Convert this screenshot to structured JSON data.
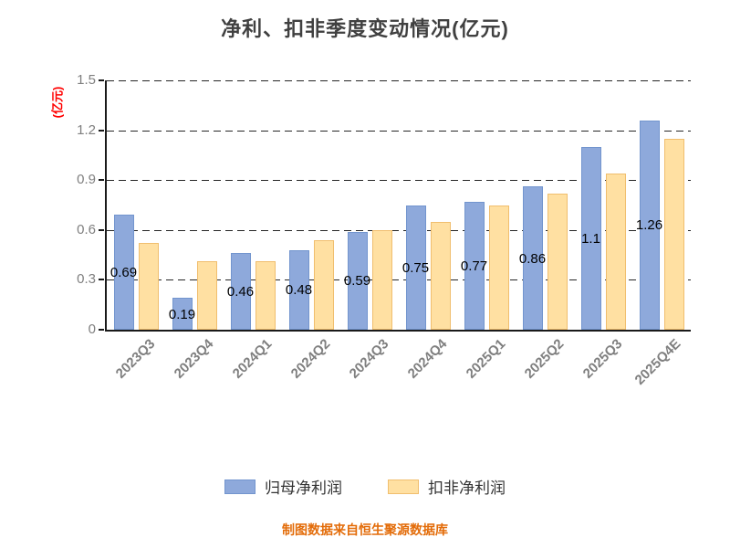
{
  "title": "净利、扣非季度变动情况(亿元)",
  "y_axis_label": "(亿元)",
  "footer": "制图数据来自恒生聚源数据库",
  "colors": {
    "title": "#404040",
    "y_axis_label": "#ff0000",
    "footer": "#e36c09",
    "axis_line": "#1a1a1a",
    "tick_text": "#7f7f7f"
  },
  "chart_data": {
    "type": "bar",
    "title": "净利、扣非季度变动情况(亿元)",
    "xlabel": "",
    "ylabel": "(亿元)",
    "ylim": [
      0,
      1.5
    ],
    "yticks": [
      0,
      0.3,
      0.6,
      0.9,
      1.2,
      1.5
    ],
    "grid": "dashed-horizontal",
    "legend_position": "bottom",
    "categories": [
      "2023Q3",
      "2023Q4",
      "2024Q1",
      "2024Q2",
      "2024Q3",
      "2024Q4",
      "2025Q1",
      "2025Q2",
      "2025Q3",
      "2025Q4E"
    ],
    "series": [
      {
        "name": "归母净利润",
        "color": "#8ea9db",
        "edge": "#7295ce",
        "values": [
          0.69,
          0.19,
          0.46,
          0.48,
          0.59,
          0.75,
          0.77,
          0.86,
          1.1,
          1.26
        ],
        "labels": [
          "0.69",
          "0.19",
          "0.46",
          "0.48",
          "0.59",
          "0.75",
          "0.77",
          "0.86",
          "1.1",
          "1.26"
        ]
      },
      {
        "name": "扣非净利润",
        "color": "#ffe0a2",
        "edge": "#f0be6e",
        "values": [
          0.52,
          0.41,
          0.41,
          0.54,
          0.6,
          0.65,
          0.75,
          0.82,
          0.94,
          1.15
        ]
      }
    ]
  }
}
